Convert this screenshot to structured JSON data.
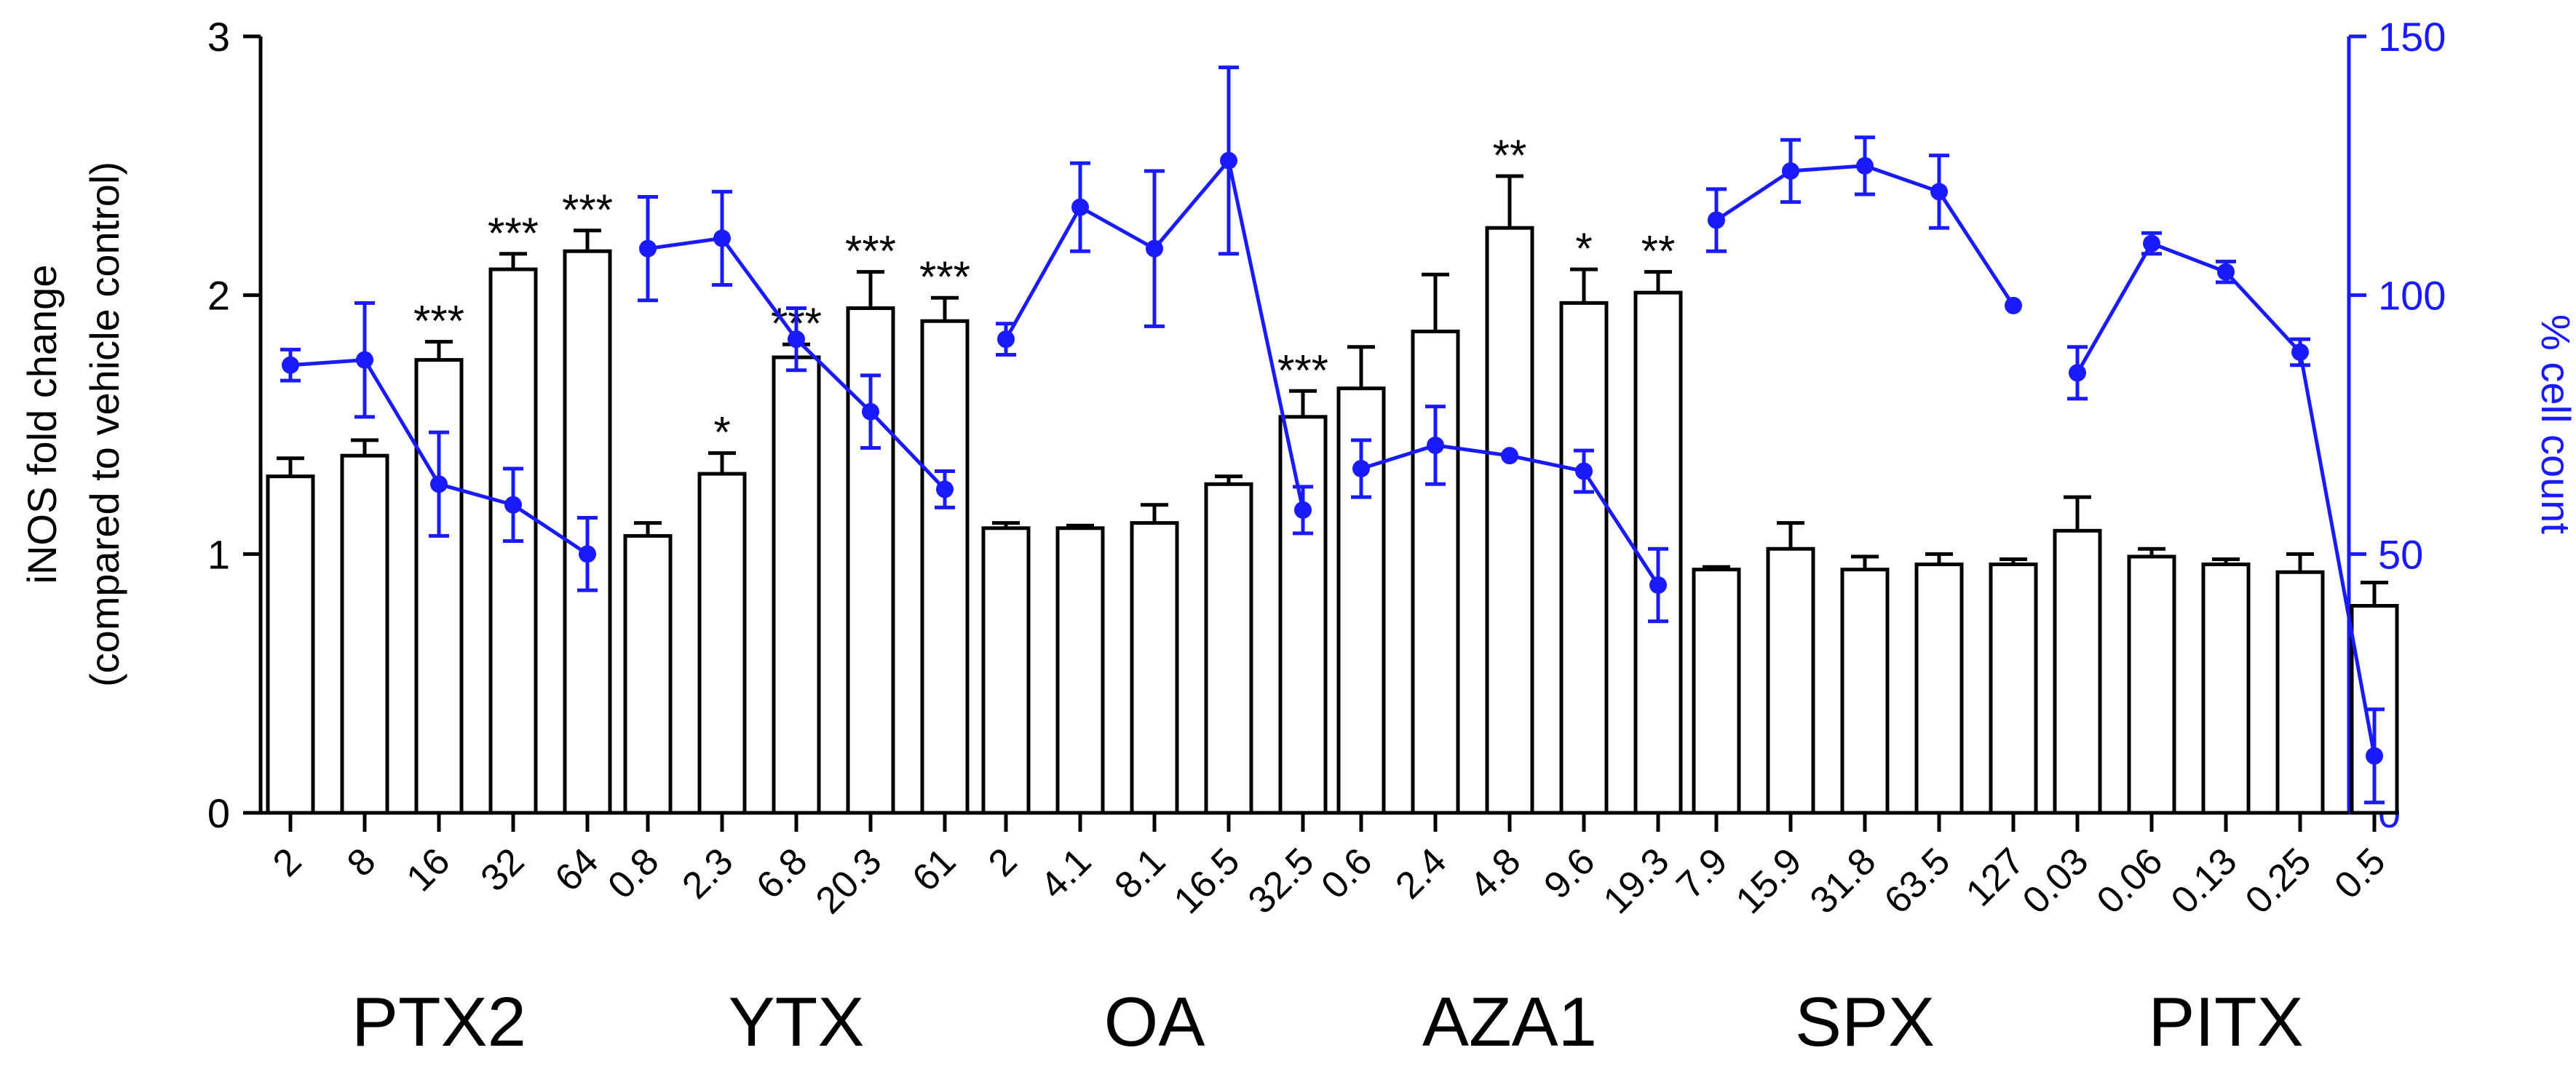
{
  "chart_data": {
    "type": "bar",
    "ylabel_lines": [
      "iNOS fold change",
      "(compared to vehicle control)"
    ],
    "y2label": "% cell count",
    "ylim": [
      0,
      3
    ],
    "y2lim": [
      0,
      150
    ],
    "yticks": [
      "0",
      "1",
      "2",
      "3"
    ],
    "y2ticks": [
      "0",
      "50",
      "100",
      "150"
    ],
    "grid": false,
    "colors": {
      "bars": "#000000",
      "line": "#1a1aff"
    },
    "groups": [
      {
        "name": "PTX2",
        "doses": [
          "2",
          "8",
          "16",
          "32",
          "64"
        ],
        "bars": [
          1.3,
          1.38,
          1.75,
          2.1,
          2.17
        ],
        "bar_err": [
          0.07,
          0.06,
          0.07,
          0.06,
          0.08
        ],
        "sig": [
          "",
          "",
          "***",
          "***",
          "***"
        ],
        "cells": [
          86.5,
          87.5,
          63.5,
          59.5,
          50
        ],
        "cell_err": [
          3,
          11,
          10,
          7,
          7
        ]
      },
      {
        "name": "YTX",
        "doses": [
          "0.8",
          "2.3",
          "6.8",
          "20.3",
          "61"
        ],
        "bars": [
          1.07,
          1.31,
          1.76,
          1.95,
          1.9
        ],
        "bar_err": [
          0.05,
          0.08,
          0.05,
          0.14,
          0.09
        ],
        "sig": [
          "",
          "*",
          "***",
          "***",
          "***"
        ],
        "cells": [
          109,
          111,
          91.5,
          77.5,
          62.5
        ],
        "cell_err": [
          10,
          9,
          6,
          7,
          3.5
        ]
      },
      {
        "name": "OA",
        "doses": [
          "2",
          "4.1",
          "8.1",
          "16.5",
          "32.5"
        ],
        "bars": [
          1.1,
          1.1,
          1.12,
          1.27,
          1.53
        ],
        "bar_err": [
          0.02,
          0.01,
          0.07,
          0.03,
          0.1
        ],
        "sig": [
          "",
          "",
          "",
          "",
          "***"
        ],
        "cells": [
          91.5,
          117,
          109,
          126,
          58.5
        ],
        "cell_err": [
          3,
          8.5,
          15,
          18,
          4.5
        ]
      },
      {
        "name": "AZA1",
        "doses": [
          "0.6",
          "2.4",
          "4.8",
          "9.6",
          "19.3"
        ],
        "bars": [
          1.64,
          1.86,
          2.26,
          1.97,
          2.01
        ],
        "bar_err": [
          0.16,
          0.22,
          0.2,
          0.13,
          0.08
        ],
        "sig": [
          "",
          "",
          "**",
          "*",
          "**"
        ],
        "cells": [
          66.5,
          71,
          69,
          66,
          44
        ],
        "cell_err": [
          5.5,
          7.5,
          0,
          4,
          7
        ]
      },
      {
        "name": "SPX",
        "doses": [
          "7.9",
          "15.9",
          "31.8",
          "63.5",
          "127"
        ],
        "bars": [
          0.94,
          1.02,
          0.94,
          0.96,
          0.96
        ],
        "bar_err": [
          0.01,
          0.1,
          0.05,
          0.04,
          0.02
        ],
        "sig": [
          "",
          "",
          "",
          "",
          ""
        ],
        "cells": [
          114.5,
          124,
          125,
          120,
          98
        ],
        "cell_err": [
          6,
          6,
          5.5,
          7,
          0
        ]
      },
      {
        "name": "PITX",
        "doses": [
          "0.03",
          "0.06",
          "0.13",
          "0.25",
          "0.5"
        ],
        "bars": [
          1.09,
          0.99,
          0.96,
          0.93,
          0.8
        ],
        "bar_err": [
          0.13,
          0.03,
          0.02,
          0.07,
          0.09
        ],
        "sig": [
          "",
          "",
          "",
          "",
          ""
        ],
        "cells": [
          85,
          110,
          104.5,
          89,
          11
        ],
        "cell_err": [
          5,
          2,
          2,
          2.5,
          9
        ]
      }
    ]
  }
}
